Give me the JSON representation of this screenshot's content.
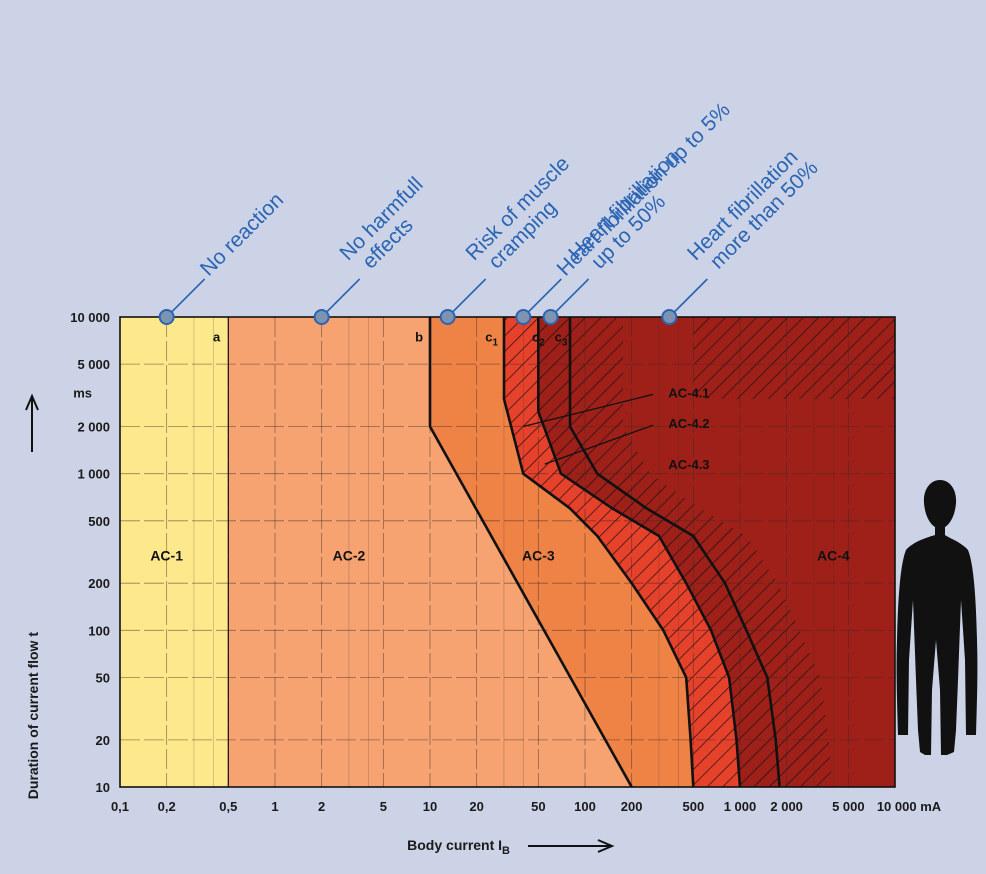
{
  "chart_data": {
    "type": "area",
    "title": "",
    "xlabel": "Body current I",
    "xlabel_sub": "B",
    "ylabel": "Duration of current flow t",
    "x_scale": "log",
    "y_scale": "log",
    "xlim": [
      0.1,
      10000
    ],
    "ylim": [
      10,
      10000
    ],
    "x_ticks": [
      {
        "value": 0.1,
        "label": "0,1"
      },
      {
        "value": 0.2,
        "label": "0,2"
      },
      {
        "value": 0.5,
        "label": "0,5"
      },
      {
        "value": 1,
        "label": "1"
      },
      {
        "value": 2,
        "label": "2"
      },
      {
        "value": 5,
        "label": "5"
      },
      {
        "value": 10,
        "label": "10"
      },
      {
        "value": 20,
        "label": "20"
      },
      {
        "value": 50,
        "label": "50"
      },
      {
        "value": 100,
        "label": "100"
      },
      {
        "value": 200,
        "label": "200"
      },
      {
        "value": 500,
        "label": "500"
      },
      {
        "value": 1000,
        "label": "1 000"
      },
      {
        "value": 2000,
        "label": "2 000"
      },
      {
        "value": 5000,
        "label": "5 000"
      },
      {
        "value": 10000,
        "label": "10 000 mA"
      }
    ],
    "y_ticks": [
      {
        "value": 10,
        "label": "10"
      },
      {
        "value": 20,
        "label": "20"
      },
      {
        "value": 50,
        "label": "50"
      },
      {
        "value": 100,
        "label": "100"
      },
      {
        "value": 200,
        "label": "200"
      },
      {
        "value": 500,
        "label": "500"
      },
      {
        "value": 1000,
        "label": "1 000"
      },
      {
        "value": 2000,
        "label": "2 000"
      },
      {
        "value": 5000,
        "label": "5 000"
      },
      {
        "value": 10000,
        "label": "10 000"
      }
    ],
    "y_unit": "ms",
    "grid": true,
    "colors": {
      "background": "#ccd3e6",
      "ac1": "#fde98c",
      "ac2": "#f6a371",
      "ac3": "#ef8346",
      "ac4_1": "#e6412a",
      "ac4": "#9e2019",
      "annotation": "#2a64b4",
      "marker": "#7d93b0"
    },
    "boundaries": [
      {
        "name": "a",
        "points": [
          [
            0.5,
            10
          ],
          [
            0.5,
            10000
          ]
        ]
      },
      {
        "name": "b",
        "points": [
          [
            10,
            10000
          ],
          [
            10,
            2000
          ],
          [
            200,
            10
          ]
        ]
      },
      {
        "name": "c1",
        "points": [
          [
            30,
            10000
          ],
          [
            30,
            3000
          ],
          [
            40,
            1000
          ],
          [
            80,
            600
          ],
          [
            120,
            400
          ],
          [
            200,
            200
          ],
          [
            320,
            100
          ],
          [
            450,
            50
          ],
          [
            480,
            20
          ],
          [
            500,
            10
          ]
        ]
      },
      {
        "name": "c2",
        "points": [
          [
            50,
            10000
          ],
          [
            50,
            2500
          ],
          [
            70,
            1000
          ],
          [
            150,
            600
          ],
          [
            300,
            400
          ],
          [
            450,
            200
          ],
          [
            650,
            100
          ],
          [
            850,
            50
          ],
          [
            950,
            20
          ],
          [
            1000,
            10
          ]
        ]
      },
      {
        "name": "c3",
        "points": [
          [
            80,
            10000
          ],
          [
            80,
            2000
          ],
          [
            120,
            1000
          ],
          [
            250,
            600
          ],
          [
            500,
            400
          ],
          [
            800,
            200
          ],
          [
            1100,
            100
          ],
          [
            1500,
            50
          ],
          [
            1700,
            20
          ],
          [
            1800,
            10
          ]
        ]
      }
    ],
    "zones": [
      {
        "label": "AC-1",
        "x": 0.2,
        "y": 300
      },
      {
        "label": "AC-2",
        "x": 3,
        "y": 300
      },
      {
        "label": "AC-3",
        "x": 50,
        "y": 300
      },
      {
        "label": "AC-4",
        "x": 4000,
        "y": 300
      }
    ],
    "curve_labels": [
      {
        "label": "a",
        "sub": "",
        "x": 0.42,
        "y": 7500
      },
      {
        "label": "b",
        "sub": "",
        "x": 8.5,
        "y": 7500
      },
      {
        "label": "c",
        "sub": "1",
        "x": 25,
        "y": 7500
      },
      {
        "label": "c",
        "sub": "2",
        "x": 50,
        "y": 7500
      },
      {
        "label": "c",
        "sub": "3",
        "x": 70,
        "y": 7500
      }
    ],
    "sub_zone_labels": [
      {
        "label": "AC-4.1",
        "x": 300,
        "y": 3300,
        "target": [
          40,
          2000
        ]
      },
      {
        "label": "AC-4.2",
        "x": 300,
        "y": 2100,
        "target": [
          55,
          1150
        ]
      },
      {
        "label": "AC-4.3",
        "x": 300,
        "y": 1150,
        "target": null
      }
    ],
    "annotations": [
      {
        "lines": [
          "No reaction"
        ],
        "x": 0.2
      },
      {
        "lines": [
          "No harmfull",
          "effects"
        ],
        "x": 2
      },
      {
        "lines": [
          "Risk of muscle",
          "cramping"
        ],
        "x": 13
      },
      {
        "lines": [
          "Heart fibrillation up to 5%"
        ],
        "x": 40
      },
      {
        "lines": [
          "Heart fibrillation",
          "up to 50%"
        ],
        "x": 60
      },
      {
        "lines": [
          "Heart fibrillation",
          "more than 50%"
        ],
        "x": 350
      }
    ]
  }
}
